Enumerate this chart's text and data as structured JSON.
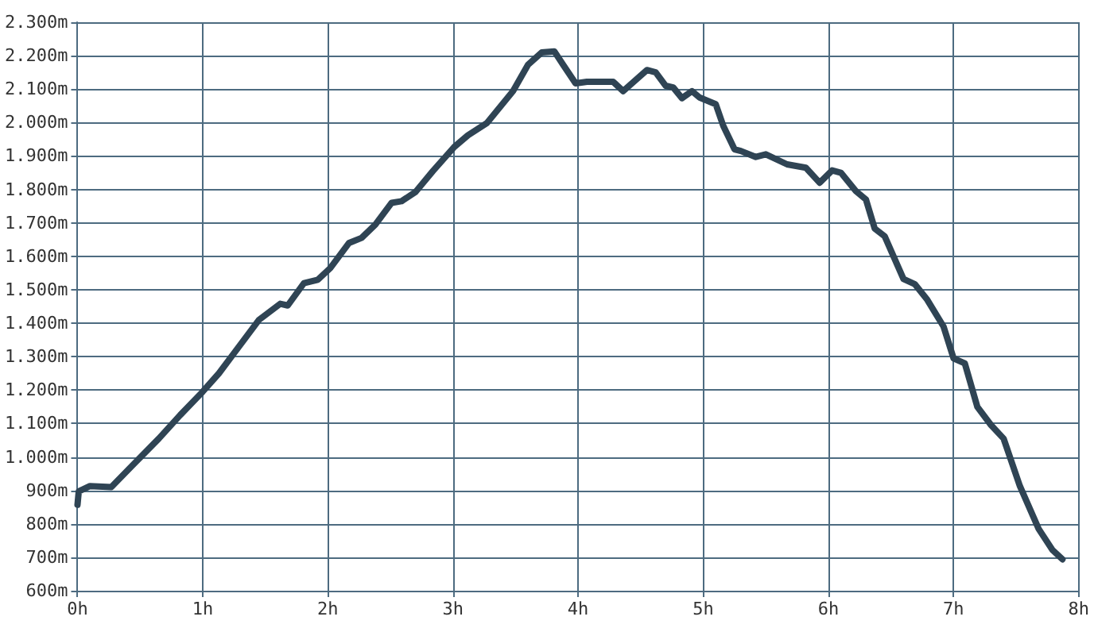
{
  "chart_data": {
    "type": "line",
    "x": [
      0,
      0.01,
      0.1,
      0.27,
      0.44,
      0.65,
      0.82,
      1.0,
      1.13,
      1.26,
      1.45,
      1.62,
      1.68,
      1.81,
      1.92,
      2.02,
      2.17,
      2.27,
      2.38,
      2.51,
      2.59,
      2.7,
      2.84,
      3.01,
      3.12,
      3.27,
      3.48,
      3.6,
      3.71,
      3.81,
      3.88,
      3.98,
      4.07,
      4.28,
      4.36,
      4.55,
      4.62,
      4.7,
      4.76,
      4.83,
      4.91,
      4.97,
      5.1,
      5.16,
      5.25,
      5.3,
      5.42,
      5.5,
      5.67,
      5.82,
      5.93,
      6.03,
      6.1,
      6.22,
      6.3,
      6.37,
      6.45,
      6.6,
      6.69,
      6.79,
      6.92,
      7.0,
      7.09,
      7.19,
      7.3,
      7.4,
      7.53,
      7.68,
      7.79,
      7.87
    ],
    "series": [
      {
        "color": "#2f4454",
        "values": [
          857,
          897,
          913,
          910,
          975,
          1055,
          1125,
          1195,
          1250,
          1315,
          1410,
          1458,
          1453,
          1520,
          1530,
          1565,
          1640,
          1655,
          1695,
          1760,
          1765,
          1792,
          1855,
          1927,
          1962,
          1998,
          2094,
          2173,
          2210,
          2213,
          2173,
          2117,
          2122,
          2122,
          2094,
          2157,
          2150,
          2110,
          2105,
          2073,
          2094,
          2075,
          2055,
          1990,
          1920,
          1915,
          1897,
          1905,
          1875,
          1865,
          1820,
          1857,
          1850,
          1795,
          1770,
          1683,
          1660,
          1532,
          1517,
          1470,
          1390,
          1295,
          1280,
          1150,
          1095,
          1055,
          913,
          785,
          722,
          694
        ]
      }
    ],
    "xlim": [
      0,
      8
    ],
    "xticks": [
      {
        "value": 0,
        "label": "0h"
      },
      {
        "value": 1,
        "label": "1h"
      },
      {
        "value": 2,
        "label": "2h"
      },
      {
        "value": 3,
        "label": "3h"
      },
      {
        "value": 4,
        "label": "4h"
      },
      {
        "value": 5,
        "label": "5h"
      },
      {
        "value": 6,
        "label": "6h"
      },
      {
        "value": 7,
        "label": "7h"
      },
      {
        "value": 8,
        "label": "8h"
      }
    ],
    "ylim": [
      600,
      2300
    ],
    "yticks": [
      {
        "value": 600,
        "label": "600m"
      },
      {
        "value": 700,
        "label": "700m"
      },
      {
        "value": 800,
        "label": "800m"
      },
      {
        "value": 900,
        "label": "900m"
      },
      {
        "value": 1000,
        "label": "1.000m"
      },
      {
        "value": 1100,
        "label": "1.100m"
      },
      {
        "value": 1200,
        "label": "1.200m"
      },
      {
        "value": 1300,
        "label": "1.300m"
      },
      {
        "value": 1400,
        "label": "1.400m"
      },
      {
        "value": 1500,
        "label": "1.500m"
      },
      {
        "value": 1600,
        "label": "1.600m"
      },
      {
        "value": 1700,
        "label": "1.700m"
      },
      {
        "value": 1800,
        "label": "1.800m"
      },
      {
        "value": 1900,
        "label": "1.900m"
      },
      {
        "value": 2000,
        "label": "2.000m"
      },
      {
        "value": 2100,
        "label": "2.100m"
      },
      {
        "value": 2200,
        "label": "2.200m"
      },
      {
        "value": 2300,
        "label": "2.300m"
      }
    ],
    "grid": true,
    "marker": "none",
    "line_style": "solid"
  }
}
